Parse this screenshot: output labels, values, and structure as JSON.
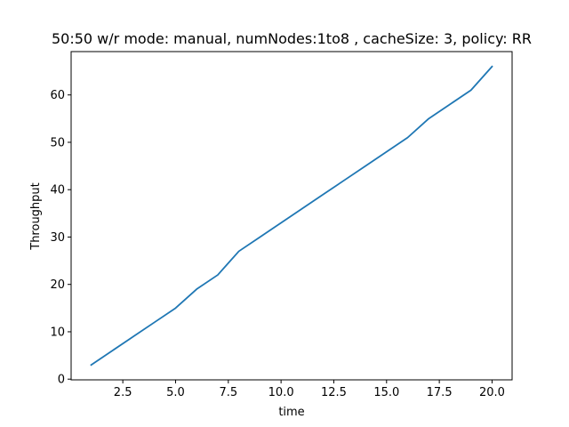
{
  "chart_data": {
    "type": "line",
    "title": "50:50 w/r mode: manual, numNodes:1to8 , cacheSize: 3, policy: RR",
    "xlabel": "time",
    "ylabel": "Throughput",
    "xlim": [
      0.05,
      20.95
    ],
    "ylim": [
      -0.15,
      69.15
    ],
    "xticks": [
      2.5,
      5.0,
      7.5,
      10.0,
      12.5,
      15.0,
      17.5,
      20.0
    ],
    "xtick_labels": [
      "2.5",
      "5.0",
      "7.5",
      "10.0",
      "12.5",
      "15.0",
      "17.5",
      "20.0"
    ],
    "yticks": [
      0,
      10,
      20,
      30,
      40,
      50,
      60
    ],
    "ytick_labels": [
      "0",
      "10",
      "20",
      "30",
      "40",
      "50",
      "60"
    ],
    "grid": false,
    "series": [
      {
        "color": "#1f77b4",
        "x": [
          1,
          2,
          3,
          4,
          5,
          6,
          7,
          8,
          9,
          10,
          11,
          12,
          13,
          14,
          15,
          16,
          17,
          18,
          19,
          20
        ],
        "y": [
          3,
          6,
          9,
          12,
          15,
          19,
          22,
          27,
          30,
          33,
          36,
          39,
          42,
          45,
          48,
          51,
          55,
          58,
          61,
          66
        ]
      }
    ]
  }
}
